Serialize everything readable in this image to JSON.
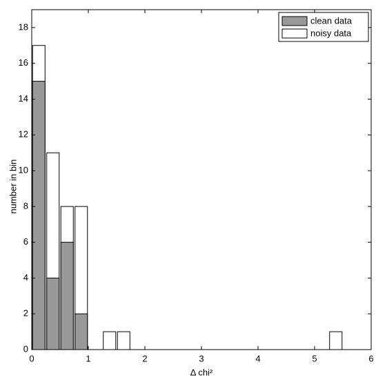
{
  "chart_data": {
    "type": "bar",
    "xlabel": "Δ chi²",
    "ylabel": "number in bin",
    "x": [
      0.125,
      0.375,
      0.625,
      0.875,
      1.375,
      1.625,
      5.375
    ],
    "series": [
      {
        "name": "noisy data",
        "color": "#ffffff",
        "values": [
          17,
          11,
          8,
          8,
          1,
          1,
          1
        ]
      },
      {
        "name": "clean data",
        "color": "#999999",
        "values": [
          15,
          4,
          6,
          2,
          0,
          0,
          0
        ]
      }
    ],
    "xlim": [
      0,
      6
    ],
    "xticks": [
      0,
      1,
      2,
      3,
      4,
      5,
      6
    ],
    "ylim": [
      0,
      19
    ],
    "yticks": [
      0,
      2,
      4,
      6,
      8,
      10,
      12,
      14,
      16,
      18
    ],
    "grid": false,
    "legend": "upper right"
  }
}
